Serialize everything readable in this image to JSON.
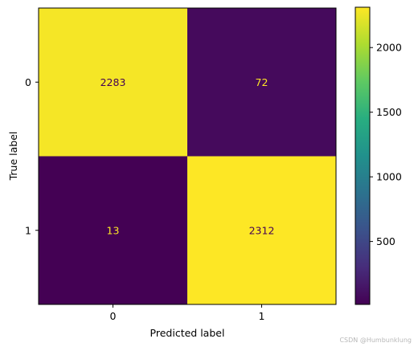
{
  "chart_data": {
    "type": "heatmap",
    "title": "",
    "xlabel": "Predicted label",
    "ylabel": "True label",
    "x_categories": [
      "0",
      "1"
    ],
    "y_categories": [
      "0",
      "1"
    ],
    "matrix": [
      [
        2283,
        72
      ],
      [
        13,
        2312
      ]
    ],
    "colormap": "viridis",
    "colorbar": {
      "ticks": [
        500,
        1000,
        1500,
        2000
      ],
      "vmin": 13,
      "vmax": 2312
    },
    "text_colors": {
      "on_dark": "#fde725",
      "on_light": "#440154"
    }
  },
  "watermark": "CSDN @Humbunklung"
}
